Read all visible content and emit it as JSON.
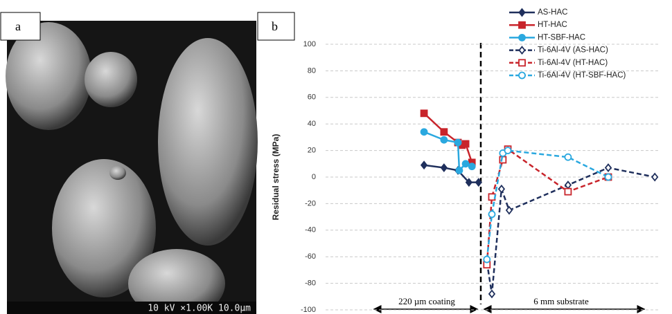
{
  "panels": {
    "a": "a",
    "b": "b"
  },
  "sem_caption": "10 kV ×1.00K 10.0µm",
  "chart_data": {
    "type": "line",
    "y_label": "Residual stress (MPa)",
    "annotations": [
      "220 µm coating",
      "6 mm substrate"
    ],
    "ylim": [
      -100,
      100
    ],
    "yticks": [
      -100,
      -80,
      -60,
      -40,
      -20,
      0,
      20,
      40,
      60,
      80,
      100
    ],
    "grid": true,
    "xlim": [
      0,
      100
    ],
    "series": [
      {
        "name": "AS-HAC",
        "color": "#1f2f5c",
        "marker": "diamond",
        "filled": true,
        "dashed": false,
        "x": [
          29.6,
          35.6,
          39.8,
          43.1,
          46.0
        ],
        "values": [
          9,
          7,
          5,
          -4,
          -4
        ]
      },
      {
        "name": "HT-HAC",
        "color": "#c8242b",
        "marker": "square",
        "filled": true,
        "dashed": false,
        "x": [
          29.6,
          35.6,
          39.8,
          41.0,
          42.1,
          44.0
        ],
        "values": [
          48,
          34,
          26,
          24,
          25,
          11
        ]
      },
      {
        "name": "HT-SBF-HAC",
        "color": "#2aa8df",
        "marker": "circle",
        "filled": true,
        "dashed": false,
        "x": [
          29.6,
          35.6,
          39.8,
          40.2,
          42.1,
          44.0
        ],
        "values": [
          34,
          28,
          26,
          5,
          10,
          8
        ]
      },
      {
        "name": "Ti-6Al-4V (AS-HAC)",
        "color": "#1f2f5c",
        "marker": "diamond",
        "filled": false,
        "dashed": true,
        "x": [
          48.5,
          50.0,
          52.9,
          55.2,
          72.9,
          85.0,
          99.0
        ],
        "values": [
          -64,
          -88,
          -9,
          -25,
          -6,
          7,
          0
        ]
      },
      {
        "name": "Ti-6Al-4V (HT-HAC)",
        "color": "#c8242b",
        "marker": "square",
        "filled": false,
        "dashed": true,
        "x": [
          48.5,
          50.0,
          53.3,
          54.8,
          72.9,
          85.0
        ],
        "values": [
          -66,
          -15,
          13,
          21,
          -11,
          0
        ]
      },
      {
        "name": "Ti-6Al-4V (HT-SBF-HAC)",
        "color": "#2aa8df",
        "marker": "circle",
        "filled": false,
        "dashed": true,
        "x": [
          48.5,
          50.0,
          53.3,
          54.8,
          72.9,
          85.0
        ],
        "values": [
          -62,
          -28,
          18,
          20,
          15,
          0
        ]
      }
    ]
  }
}
